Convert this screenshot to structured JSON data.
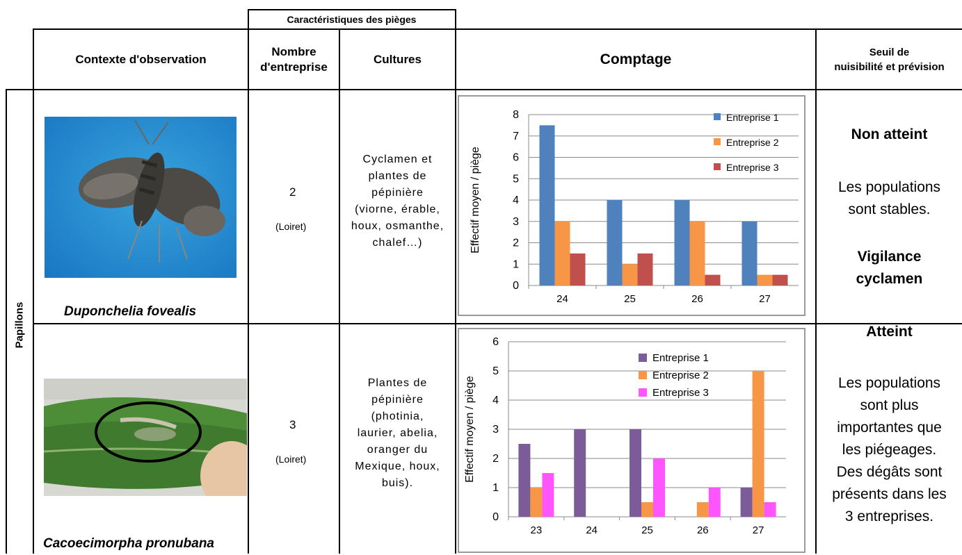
{
  "header": {
    "group_title": "Caractéristiques des pièges",
    "col_context": "Contexte d'observation",
    "col_nombre_line1": "Nombre",
    "col_nombre_line2": "d'entreprise",
    "col_cultures": "Cultures",
    "col_comptage": "Comptage",
    "col_seuil_line1": "Seuil de",
    "col_seuil_line2": "nuisibilité et prévision"
  },
  "row_group_label": "Papillons",
  "rows": [
    {
      "species": "Duponchelia fovealis",
      "nombre": "2",
      "region": "(Loiret)",
      "cultures": [
        "Cyclamen et",
        "plantes de",
        "pépinière",
        "(viorne, érable,",
        "houx, osmanthe,",
        "chalef…)"
      ],
      "seuil_title": "Non atteint",
      "seuil_lines": [
        "Les populations",
        "sont stables."
      ],
      "seuil_extra": [
        "Vigilance",
        "cyclamen"
      ]
    },
    {
      "species": "Cacoecimorpha pronubana",
      "nombre": "3",
      "region": "(Loiret)",
      "cultures": [
        "Plantes de",
        "pépinière",
        "(photinia,",
        "laurier, abelia,",
        "oranger du",
        "Mexique, houx,",
        "buis)."
      ],
      "seuil_title": "Atteint",
      "seuil_lines": [
        "Les populations",
        "sont plus",
        "importantes que",
        "les piégeages.",
        "Des dégâts sont",
        "présents dans les",
        "3 entreprises."
      ],
      "seuil_extra": []
    }
  ],
  "chart_data": [
    {
      "type": "bar",
      "ylabel": "Effectif moyen / piège",
      "categories": [
        "24",
        "25",
        "26",
        "27"
      ],
      "ylim": [
        0,
        8
      ],
      "yticks": [
        0,
        1,
        2,
        3,
        4,
        5,
        6,
        7,
        8
      ],
      "grid": true,
      "legend_position": "top-right",
      "series": [
        {
          "name": "Entreprise 1",
          "color": "#4f81bd",
          "values": [
            7.5,
            4,
            4,
            3
          ]
        },
        {
          "name": "Entreprise 2",
          "color": "#f79646",
          "values": [
            3,
            1,
            3,
            0.5
          ]
        },
        {
          "name": "Entreprise 3",
          "color": "#c0504d",
          "values": [
            1.5,
            1.5,
            0.5,
            0.5
          ]
        }
      ]
    },
    {
      "type": "bar",
      "ylabel": "Effectif moyen / piège",
      "categories": [
        "23",
        "24",
        "25",
        "26",
        "27"
      ],
      "ylim": [
        0,
        6
      ],
      "yticks": [
        0,
        1,
        2,
        3,
        4,
        5,
        6
      ],
      "grid": true,
      "legend_position": "top-right",
      "series": [
        {
          "name": "Entreprise 1",
          "color": "#7b5c99",
          "values": [
            2.5,
            3,
            3,
            0,
            1
          ]
        },
        {
          "name": "Entreprise 2",
          "color": "#f79646",
          "values": [
            1,
            0,
            0.5,
            0.5,
            5
          ]
        },
        {
          "name": "Entreprise 3",
          "color": "#ff55ff",
          "values": [
            1.5,
            0,
            2,
            1,
            0.5
          ]
        }
      ]
    }
  ]
}
